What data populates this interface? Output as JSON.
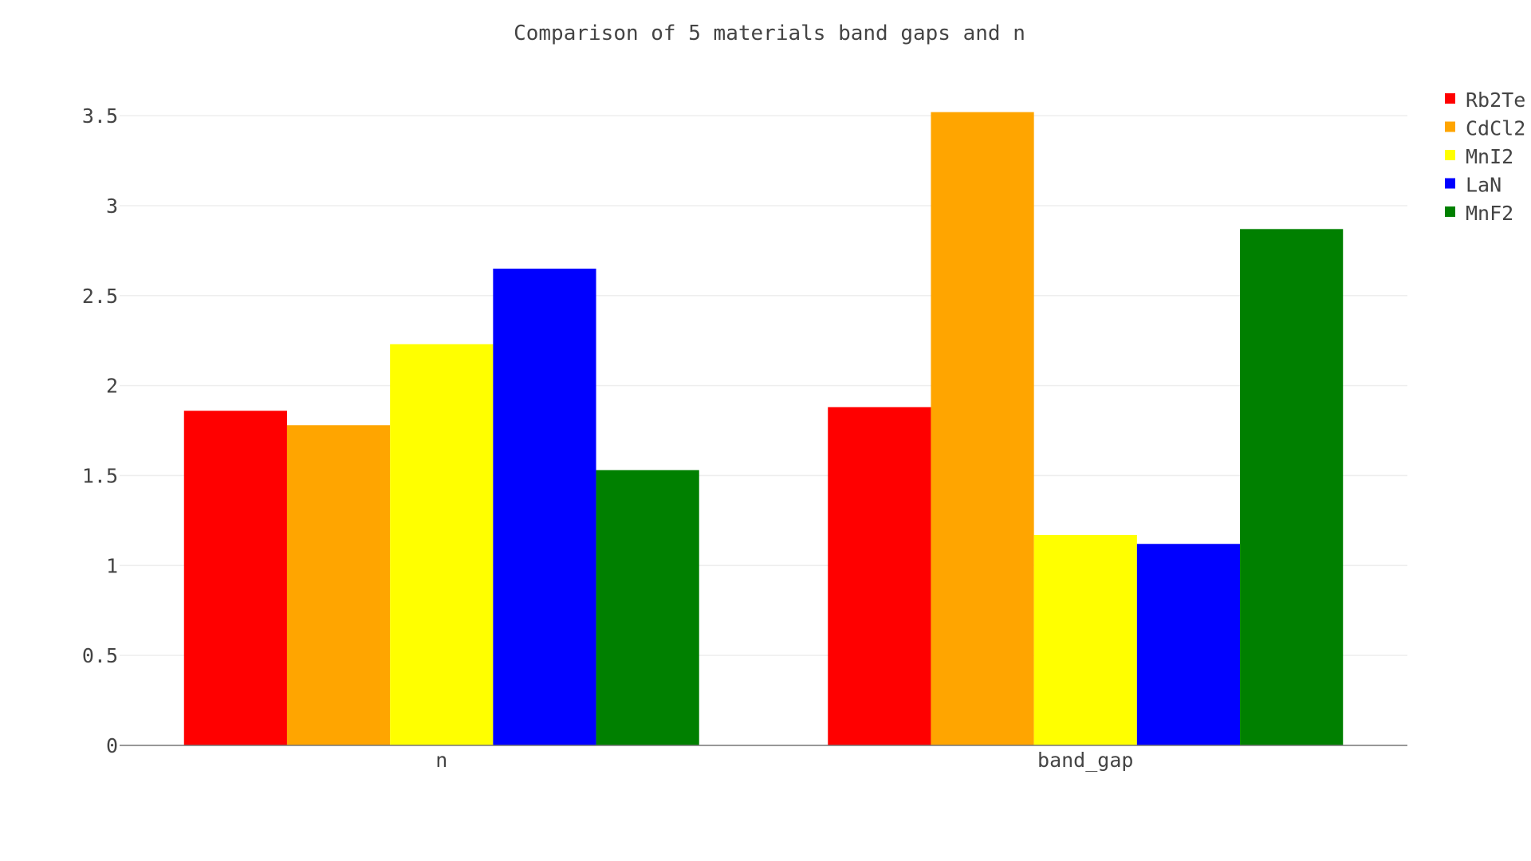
{
  "chart_data": {
    "type": "bar",
    "title": "Comparison of 5 materials band gaps and n",
    "xlabel": "",
    "ylabel": "",
    "categories": [
      "n",
      "band_gap"
    ],
    "series": [
      {
        "name": "Rb2Te",
        "color": "#ff0000",
        "values": [
          1.86,
          1.88
        ]
      },
      {
        "name": "CdCl2",
        "color": "#ffa500",
        "values": [
          1.78,
          3.52
        ]
      },
      {
        "name": "MnI2",
        "color": "#ffff00",
        "values": [
          2.23,
          1.17
        ]
      },
      {
        "name": "LaN",
        "color": "#0000ff",
        "values": [
          2.65,
          1.12
        ]
      },
      {
        "name": "MnF2",
        "color": "#008000",
        "values": [
          1.53,
          2.87
        ]
      }
    ],
    "ylim": [
      0,
      3.7
    ],
    "yticks": [
      0,
      0.5,
      1,
      1.5,
      2,
      2.5,
      3,
      3.5
    ],
    "ytick_labels": [
      "0",
      "0.5",
      "1",
      "1.5",
      "2",
      "2.5",
      "3",
      "3.5"
    ],
    "grid": true,
    "legend_position": "top-right"
  }
}
